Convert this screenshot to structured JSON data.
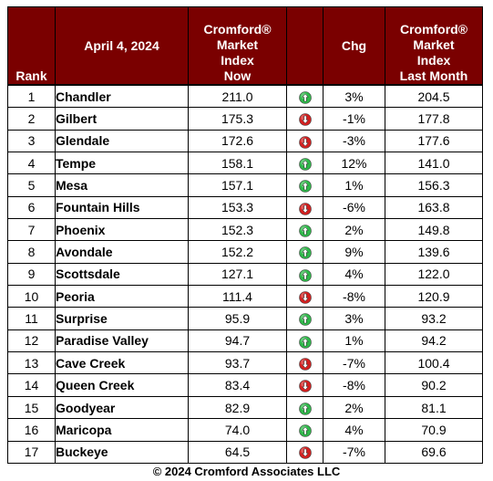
{
  "chart_data": {
    "type": "table",
    "header": {
      "rank": "Rank",
      "date": "April 4, 2024",
      "now": [
        "Cromford®",
        "Market",
        "Index",
        "Now"
      ],
      "chg": "Chg",
      "last": [
        "Cromford®",
        "Market",
        "Index",
        "Last Month"
      ]
    },
    "rows": [
      {
        "rank": "1",
        "city": "Chandler",
        "now": "211.0",
        "dir": "up",
        "chg": "3%",
        "last": "204.5"
      },
      {
        "rank": "2",
        "city": "Gilbert",
        "now": "175.3",
        "dir": "down",
        "chg": "-1%",
        "last": "177.8"
      },
      {
        "rank": "3",
        "city": "Glendale",
        "now": "172.6",
        "dir": "down",
        "chg": "-3%",
        "last": "177.6"
      },
      {
        "rank": "4",
        "city": "Tempe",
        "now": "158.1",
        "dir": "up",
        "chg": "12%",
        "last": "141.0"
      },
      {
        "rank": "5",
        "city": "Mesa",
        "now": "157.1",
        "dir": "up",
        "chg": "1%",
        "last": "156.3"
      },
      {
        "rank": "6",
        "city": "Fountain Hills",
        "now": "153.3",
        "dir": "down",
        "chg": "-6%",
        "last": "163.8"
      },
      {
        "rank": "7",
        "city": "Phoenix",
        "now": "152.3",
        "dir": "up",
        "chg": "2%",
        "last": "149.8"
      },
      {
        "rank": "8",
        "city": "Avondale",
        "now": "152.2",
        "dir": "up",
        "chg": "9%",
        "last": "139.6"
      },
      {
        "rank": "9",
        "city": "Scottsdale",
        "now": "127.1",
        "dir": "up",
        "chg": "4%",
        "last": "122.0"
      },
      {
        "rank": "10",
        "city": "Peoria",
        "now": "111.4",
        "dir": "down",
        "chg": "-8%",
        "last": "120.9"
      },
      {
        "rank": "11",
        "city": "Surprise",
        "now": "95.9",
        "dir": "up",
        "chg": "3%",
        "last": "93.2"
      },
      {
        "rank": "12",
        "city": "Paradise Valley",
        "now": "94.7",
        "dir": "up",
        "chg": "1%",
        "last": "94.2"
      },
      {
        "rank": "13",
        "city": "Cave Creek",
        "now": "93.7",
        "dir": "down",
        "chg": "-7%",
        "last": "100.4"
      },
      {
        "rank": "14",
        "city": "Queen Creek",
        "now": "83.4",
        "dir": "down",
        "chg": "-8%",
        "last": "90.2"
      },
      {
        "rank": "15",
        "city": "Goodyear",
        "now": "82.9",
        "dir": "up",
        "chg": "2%",
        "last": "81.1"
      },
      {
        "rank": "16",
        "city": "Maricopa",
        "now": "74.0",
        "dir": "up",
        "chg": "4%",
        "last": "70.9"
      },
      {
        "rank": "17",
        "city": "Buckeye",
        "now": "64.5",
        "dir": "down",
        "chg": "-7%",
        "last": "69.6"
      }
    ],
    "colors": {
      "header_bg": "#7a0000",
      "up": "#2fb84a",
      "down": "#d42020"
    }
  },
  "footer": "© 2024 Cromford Associates LLC"
}
